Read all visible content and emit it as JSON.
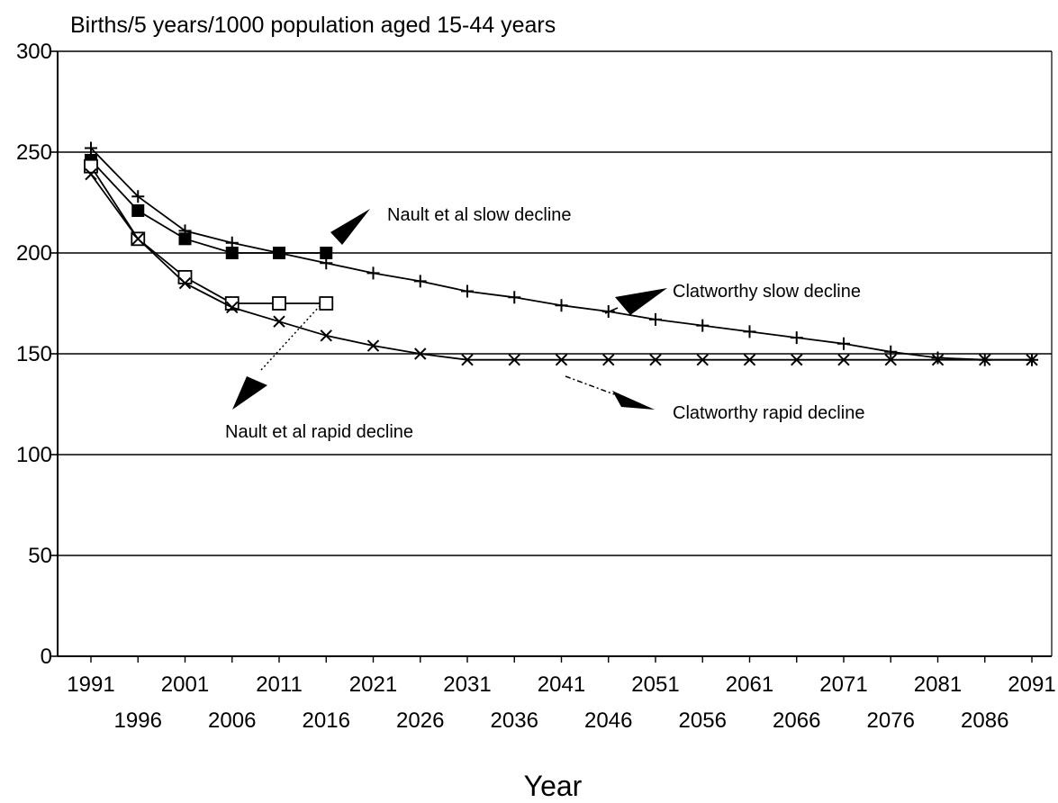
{
  "chart_data": {
    "type": "line",
    "ylabel": "Births/5 years/1000 population aged 15-44 years",
    "xlabel": "Year",
    "ylim": [
      0,
      300
    ],
    "yticks": [
      0,
      50,
      100,
      150,
      200,
      250,
      300
    ],
    "xlim": [
      1991,
      2091
    ],
    "xticks_top": [
      "1991",
      "2001",
      "2011",
      "2021",
      "2031",
      "2041",
      "2051",
      "2061",
      "2071",
      "2081",
      "2091"
    ],
    "xticks_bottom": [
      "1996",
      "2006",
      "2016",
      "2026",
      "2036",
      "2046",
      "2056",
      "2066",
      "2076",
      "2086"
    ],
    "grid": "horizontal",
    "series": [
      {
        "name": "Clatworthy slow decline",
        "marker": "plus",
        "x": [
          1991,
          1996,
          2001,
          2006,
          2011,
          2016,
          2021,
          2026,
          2031,
          2036,
          2041,
          2046,
          2051,
          2056,
          2061,
          2066,
          2071,
          2076,
          2081,
          2086,
          2091
        ],
        "y": [
          252,
          228,
          211,
          205,
          200,
          195,
          190,
          186,
          181,
          178,
          174,
          171,
          167,
          164,
          161,
          158,
          155,
          151,
          148,
          147,
          147
        ]
      },
      {
        "name": "Nault et al slow decline",
        "marker": "filled-square",
        "x": [
          1991,
          1996,
          2001,
          2006,
          2011,
          2016
        ],
        "y": [
          246,
          221,
          207,
          200,
          200,
          200
        ]
      },
      {
        "name": "Nault et al rapid decline",
        "marker": "open-square",
        "x": [
          1991,
          1996,
          2001,
          2006,
          2011,
          2016
        ],
        "y": [
          243,
          207,
          188,
          175,
          175,
          175
        ]
      },
      {
        "name": "Clatworthy rapid decline",
        "marker": "cross",
        "x": [
          1991,
          1996,
          2001,
          2006,
          2011,
          2016,
          2021,
          2026,
          2031,
          2036,
          2041,
          2046,
          2051,
          2056,
          2061,
          2066,
          2071,
          2076,
          2081,
          2086,
          2091
        ],
        "y": [
          239,
          207,
          185,
          173,
          166,
          159,
          154,
          150,
          147,
          147,
          147,
          147,
          147,
          147,
          147,
          147,
          147,
          147,
          147,
          147,
          147
        ]
      }
    ],
    "annotations": [
      {
        "text": "Nault et al slow decline",
        "series": 1
      },
      {
        "text": "Clatworthy slow decline",
        "series": 0
      },
      {
        "text": "Nault et al rapid decline",
        "series": 2
      },
      {
        "text": "Clatworthy rapid decline",
        "series": 3
      }
    ]
  }
}
